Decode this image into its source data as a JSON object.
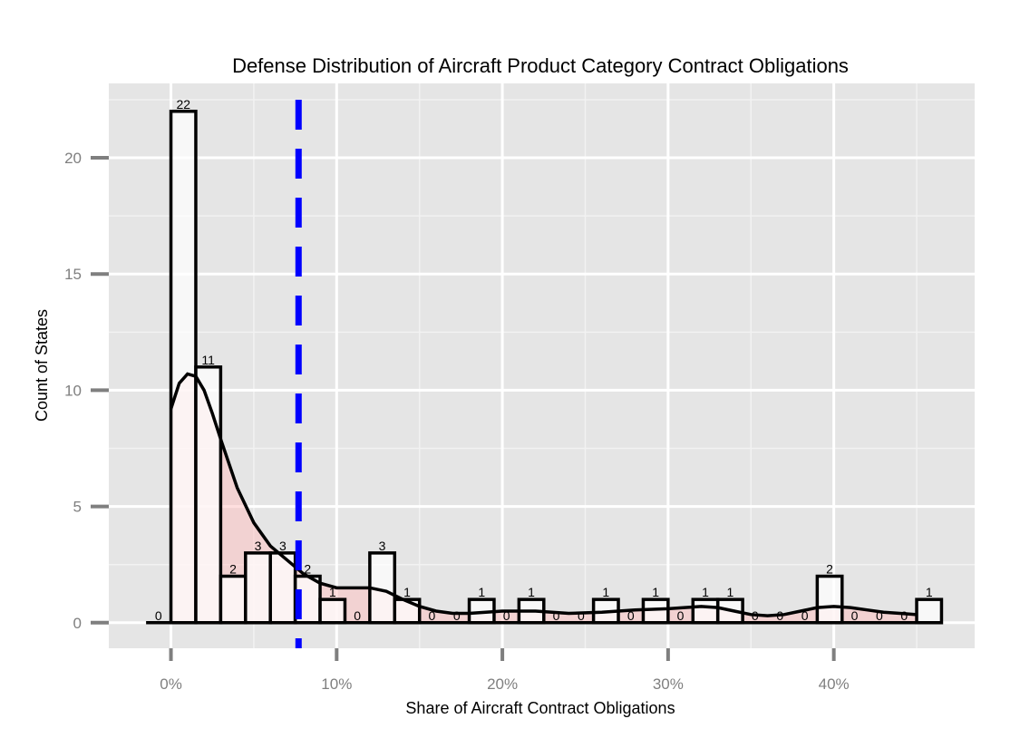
{
  "colors": {
    "panel_background": "#e5e5e5",
    "grid_major": "#ffffff",
    "grid_minor": "#f2f2f2",
    "bar_fill": "#ffffff",
    "bar_outline": "#000000",
    "density_fill": "#ffc0c0",
    "density_line": "#000000",
    "mean_line": "#0000ff",
    "tick_text": "#7f7f7f"
  },
  "chart_data": {
    "type": "bar",
    "title": "Defense Distribution of Aircraft Product Category Contract Obligations",
    "xlabel": "Share of Aircraft Contract Obligations",
    "ylabel": "Count of States",
    "xlim": [
      -3.75,
      48.5
    ],
    "ylim": [
      -1.1,
      23.2
    ],
    "x_ticks": [
      0,
      10,
      20,
      30,
      40
    ],
    "x_tick_labels": [
      "0%",
      "10%",
      "20%",
      "30%",
      "40%"
    ],
    "y_ticks": [
      0,
      5,
      10,
      15,
      20
    ],
    "y_tick_labels": [
      "0",
      "5",
      "10",
      "15",
      "20"
    ],
    "grid": true,
    "legend": "none",
    "bin_width": 1.5,
    "bins": [
      {
        "center": -0.75,
        "count": 0,
        "label": "0"
      },
      {
        "center": 0.75,
        "count": 22,
        "label": "22"
      },
      {
        "center": 2.25,
        "count": 11,
        "label": "11"
      },
      {
        "center": 3.75,
        "count": 2,
        "label": "2"
      },
      {
        "center": 5.25,
        "count": 3,
        "label": "3"
      },
      {
        "center": 6.75,
        "count": 3,
        "label": "3"
      },
      {
        "center": 8.25,
        "count": 2,
        "label": "2"
      },
      {
        "center": 9.75,
        "count": 1,
        "label": "1"
      },
      {
        "center": 11.25,
        "count": 0,
        "label": "0"
      },
      {
        "center": 12.75,
        "count": 3,
        "label": "3"
      },
      {
        "center": 14.25,
        "count": 1,
        "label": "1"
      },
      {
        "center": 15.75,
        "count": 0,
        "label": "0"
      },
      {
        "center": 17.25,
        "count": 0,
        "label": "0"
      },
      {
        "center": 18.75,
        "count": 1,
        "label": "1"
      },
      {
        "center": 20.25,
        "count": 0,
        "label": "0"
      },
      {
        "center": 21.75,
        "count": 1,
        "label": "1"
      },
      {
        "center": 23.25,
        "count": 0,
        "label": "0"
      },
      {
        "center": 24.75,
        "count": 0,
        "label": "0"
      },
      {
        "center": 26.25,
        "count": 1,
        "label": "1"
      },
      {
        "center": 27.75,
        "count": 0,
        "label": "0"
      },
      {
        "center": 29.25,
        "count": 1,
        "label": "1"
      },
      {
        "center": 30.75,
        "count": 0,
        "label": "0"
      },
      {
        "center": 32.25,
        "count": 1,
        "label": "1"
      },
      {
        "center": 33.75,
        "count": 1,
        "label": "1"
      },
      {
        "center": 35.25,
        "count": 0,
        "label": "0"
      },
      {
        "center": 36.75,
        "count": 0,
        "label": "0"
      },
      {
        "center": 38.25,
        "count": 0,
        "label": "0"
      },
      {
        "center": 39.75,
        "count": 2,
        "label": "2"
      },
      {
        "center": 41.25,
        "count": 0,
        "label": "0"
      },
      {
        "center": 42.75,
        "count": 0,
        "label": "0"
      },
      {
        "center": 44.25,
        "count": 0,
        "label": "0"
      },
      {
        "center": 45.75,
        "count": 1,
        "label": "1"
      }
    ],
    "mean_line_x": 7.7,
    "density_curve": {
      "x": [
        0,
        0.5,
        1,
        1.5,
        2,
        2.5,
        3,
        4,
        5,
        6,
        7,
        8,
        9,
        10,
        11,
        12,
        13,
        14,
        15,
        16,
        17,
        18,
        20,
        22,
        24,
        26,
        28,
        30,
        31,
        32,
        33,
        34,
        35,
        36,
        37,
        38,
        39,
        40,
        41,
        42,
        43,
        44,
        45
      ],
      "y": [
        9.2,
        10.3,
        10.7,
        10.6,
        10.0,
        9.0,
        7.9,
        5.8,
        4.3,
        3.3,
        2.7,
        2.1,
        1.7,
        1.5,
        1.5,
        1.5,
        1.35,
        1.0,
        0.7,
        0.5,
        0.4,
        0.4,
        0.5,
        0.5,
        0.4,
        0.45,
        0.55,
        0.6,
        0.65,
        0.7,
        0.65,
        0.5,
        0.35,
        0.3,
        0.35,
        0.5,
        0.65,
        0.7,
        0.65,
        0.55,
        0.45,
        0.4,
        0.35
      ]
    }
  }
}
